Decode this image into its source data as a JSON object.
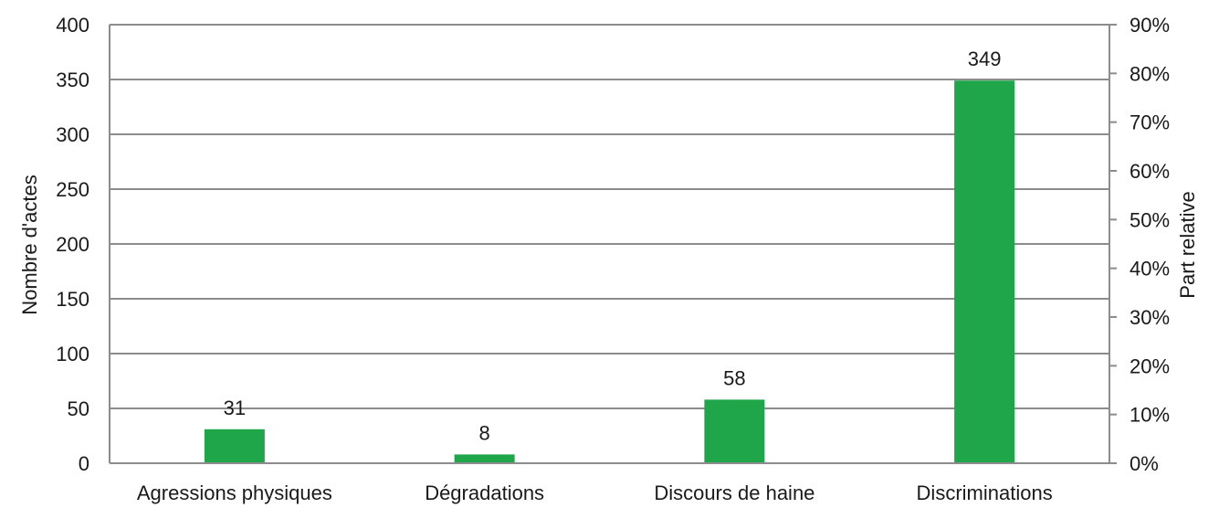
{
  "chart_data": {
    "type": "bar",
    "categories": [
      "Agressions physiques",
      "Dégradations",
      "Discours de haine",
      "Discriminations"
    ],
    "values": [
      31,
      8,
      58,
      349
    ],
    "data_labels": [
      "31",
      "8",
      "58",
      "349"
    ],
    "ylabel": "Nombre d'actes",
    "y2label": "Part relative",
    "ylim": [
      0,
      400
    ],
    "yticks": [
      "0",
      "50",
      "100",
      "150",
      "200",
      "250",
      "300",
      "350",
      "400"
    ],
    "y2lim": [
      0,
      0.9
    ],
    "y2ticks": [
      "0%",
      "10%",
      "20%",
      "30%",
      "40%",
      "50%",
      "60%",
      "70%",
      "80%",
      "90%"
    ],
    "grid": true,
    "colors": {
      "bar": "#1fa64a",
      "grid": "#8c8c8c",
      "axis": "#8c8c8c"
    }
  }
}
